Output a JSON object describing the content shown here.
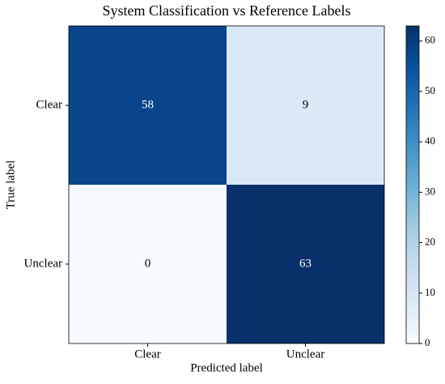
{
  "chart_data": {
    "type": "heatmap",
    "title": "System Classification vs Reference Labels",
    "xlabel": "Predicted label",
    "ylabel": "True label",
    "x_categories": [
      "Clear",
      "Unclear"
    ],
    "y_categories": [
      "Clear",
      "Unclear"
    ],
    "values": [
      [
        58,
        9
      ],
      [
        0,
        63
      ]
    ],
    "colormap": "Blues",
    "clim": [
      0,
      63
    ],
    "cticks": [
      0,
      10,
      20,
      30,
      40,
      50,
      60
    ]
  }
}
